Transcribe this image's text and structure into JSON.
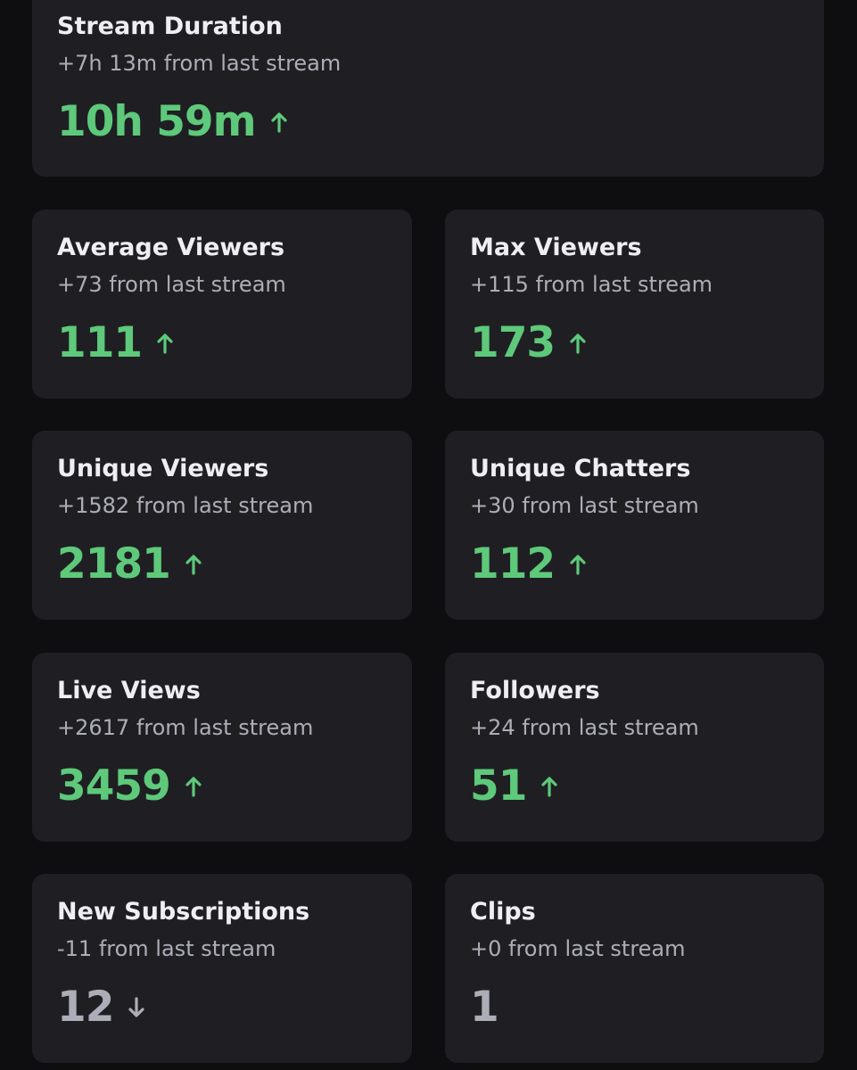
{
  "cards": [
    {
      "title": "Stream Duration",
      "change": "+7h 13m from last stream",
      "value": "10h 59m",
      "trend": "up"
    },
    {
      "title": "Average Viewers",
      "change": "+73 from last stream",
      "value": 111,
      "trend": "up"
    },
    {
      "title": "Max Viewers",
      "change": "+115 from last stream",
      "value": 173,
      "trend": "up"
    },
    {
      "title": "Unique Viewers",
      "change": "+1582 from last stream",
      "value": 2181,
      "trend": "up"
    },
    {
      "title": "Unique Chatters",
      "change": "+30 from last stream",
      "value": 112,
      "trend": "up"
    },
    {
      "title": "Live Views",
      "change": "+2617 from last stream",
      "value": 3459,
      "trend": "up"
    },
    {
      "title": "Followers",
      "change": "+24 from last stream",
      "value": 51,
      "trend": "up"
    },
    {
      "title": "New Subscriptions",
      "change": "-11 from last stream",
      "value": 12,
      "trend": "down"
    },
    {
      "title": "Clips",
      "change": "+0 from last stream",
      "value": 1,
      "trend": null
    }
  ]
}
